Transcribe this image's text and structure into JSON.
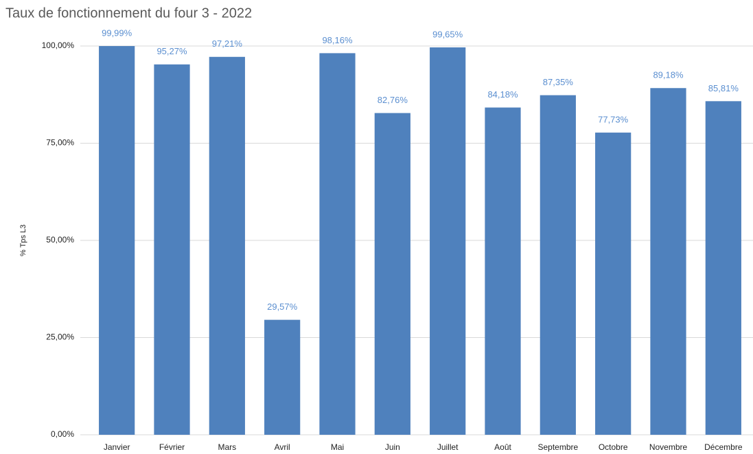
{
  "chart_data": {
    "type": "bar",
    "title": "Taux de fonctionnement du four 3 - 2022",
    "y_label": "% Tps L3",
    "categories": [
      "Janvier",
      "Février",
      "Mars",
      "Avril",
      "Mai",
      "Juin",
      "Juillet",
      "Août",
      "Septembre",
      "Octobre",
      "Novembre",
      "Décembre"
    ],
    "values": [
      99.99,
      95.27,
      97.21,
      29.57,
      98.16,
      82.76,
      99.65,
      84.18,
      87.35,
      77.73,
      89.18,
      85.81
    ],
    "value_labels": [
      "99,99%",
      "95,27%",
      "97,21%",
      "29,57%",
      "98,16%",
      "82,76%",
      "99,65%",
      "84,18%",
      "87,35%",
      "77,73%",
      "89,18%",
      "85,81%"
    ],
    "color": "#4f81bd",
    "ylim": [
      0,
      100
    ],
    "yticks": [
      {
        "value": 0,
        "label": "0,00%"
      },
      {
        "value": 25,
        "label": "25,00%"
      },
      {
        "value": 50,
        "label": "50,00%"
      },
      {
        "value": 75,
        "label": "75,00%"
      },
      {
        "value": 100,
        "label": "100,00%"
      }
    ],
    "grid": true
  }
}
